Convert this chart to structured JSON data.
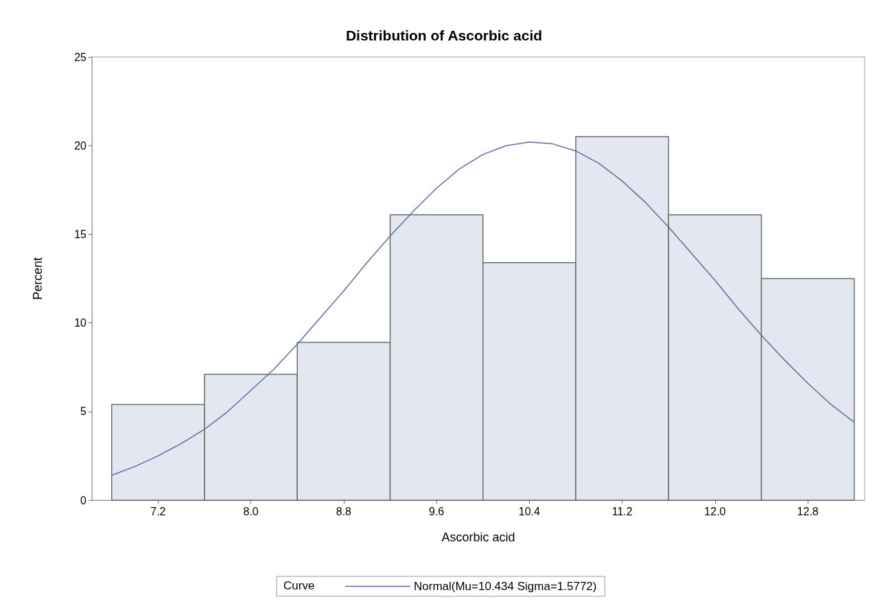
{
  "chart_data": {
    "type": "histogram",
    "title": "Distribution of Ascorbic acid",
    "xlabel": "Ascorbic acid",
    "ylabel": "Percent",
    "legend_title": "Curve",
    "legend": "bottom",
    "grid": false,
    "bins": [
      6.8,
      7.6,
      8.4,
      9.2,
      10.0,
      10.8,
      11.6,
      12.4,
      13.2
    ],
    "values": [
      5.4,
      7.1,
      8.9,
      16.1,
      13.4,
      20.5,
      16.1,
      12.5
    ],
    "color": "#e3e7f0",
    "series": [
      {
        "type": "line",
        "name": "Normal(Mu=10.434 Sigma=1.5772)",
        "color": "#5a6aa8",
        "marker": "none",
        "x": [
          6.8,
          7.0,
          7.2,
          7.4,
          7.6,
          7.8,
          8.0,
          8.2,
          8.4,
          8.6,
          8.8,
          9.0,
          9.2,
          9.4,
          9.6,
          9.8,
          10.0,
          10.2,
          10.4,
          10.6,
          10.8,
          11.0,
          11.2,
          11.4,
          11.6,
          11.8,
          12.0,
          12.2,
          12.4,
          12.6,
          12.8,
          13.0,
          13.2
        ],
        "values": [
          1.4,
          1.9,
          2.5,
          3.2,
          4.0,
          5.0,
          6.2,
          7.4,
          8.8,
          10.3,
          11.8,
          13.4,
          14.9,
          16.3,
          17.6,
          18.7,
          19.5,
          20.0,
          20.2,
          20.1,
          19.7,
          19.0,
          18.0,
          16.8,
          15.4,
          13.9,
          12.4,
          10.8,
          9.3,
          7.9,
          6.6,
          5.4,
          4.4
        ]
      }
    ],
    "xlim": [
      6.63,
      13.29
    ],
    "xticks": [
      {
        "value": 7.2,
        "label": "7.2"
      },
      {
        "value": 8.0,
        "label": "8.0"
      },
      {
        "value": 8.8,
        "label": "8.8"
      },
      {
        "value": 9.6,
        "label": "9.6"
      },
      {
        "value": 10.4,
        "label": "10.4"
      },
      {
        "value": 11.2,
        "label": "11.2"
      },
      {
        "value": 12.0,
        "label": "12.0"
      },
      {
        "value": 12.8,
        "label": "12.8"
      }
    ],
    "ylim": [
      0,
      25
    ],
    "yticks": [
      0,
      5,
      10,
      15,
      20,
      25
    ]
  }
}
